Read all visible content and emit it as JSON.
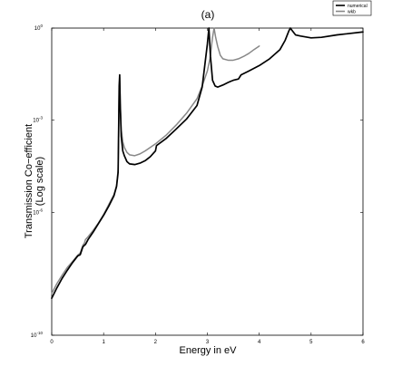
{
  "chart_data": {
    "type": "line",
    "title": "(a)",
    "xlabel": "Energy in eV",
    "ylabel_line1": "Transmission Co−efficient",
    "ylabel_line2": "(Log scale)",
    "xlim": [
      0,
      6
    ],
    "ylim_exponent": [
      -10,
      0
    ],
    "y_scale": "log",
    "grid": false,
    "legend_position": "top-right",
    "x_ticks": [
      0,
      1,
      2,
      3,
      4,
      5,
      6
    ],
    "y_ticks": [
      {
        "value": 1e-10,
        "base": "10",
        "exp": "-10"
      },
      {
        "value": 1e-06,
        "base": "10",
        "exp": "-6"
      },
      {
        "value": 0.001,
        "base": "10",
        "exp": "-3"
      },
      {
        "value": 1,
        "base": "10",
        "exp": "0"
      }
    ],
    "series": [
      {
        "name": "numerical",
        "color": "#000000",
        "x": [
          0.0,
          0.1,
          0.2,
          0.3,
          0.4,
          0.5,
          0.55,
          0.6,
          0.63,
          0.65,
          0.7,
          0.8,
          0.9,
          1.0,
          1.1,
          1.2,
          1.25,
          1.28,
          1.3,
          1.31,
          1.32,
          1.34,
          1.37,
          1.4,
          1.45,
          1.5,
          1.6,
          1.7,
          1.8,
          1.9,
          2.0,
          2.02,
          2.2,
          2.4,
          2.6,
          2.8,
          2.9,
          3.0,
          3.03,
          3.06,
          3.1,
          3.15,
          3.2,
          3.3,
          3.4,
          3.5,
          3.6,
          3.65,
          3.8,
          4.0,
          4.2,
          4.4,
          4.5,
          4.57,
          4.6,
          4.63,
          4.7,
          4.8,
          5.0,
          5.2,
          5.5,
          6.0
        ],
        "y": [
          1.6e-09,
          3.5e-09,
          7.1e-09,
          1.3e-08,
          2.3e-08,
          3.8e-08,
          4.2e-08,
          7.5e-08,
          8.5e-08,
          9e-08,
          1.3e-07,
          2.3e-07,
          4.3e-07,
          8e-07,
          1.6e-06,
          3.5e-06,
          7e-06,
          2e-05,
          0.013,
          0.03,
          0.0035,
          0.0003,
          0.0001,
          7e-05,
          4.5e-05,
          3.8e-05,
          3.6e-05,
          4e-05,
          4.8e-05,
          6.5e-05,
          0.0001,
          0.00015,
          0.00025,
          0.00052,
          0.0011,
          0.003,
          0.012,
          0.3,
          1.0,
          0.12,
          0.02,
          0.013,
          0.012,
          0.014,
          0.017,
          0.02,
          0.022,
          0.03,
          0.04,
          0.06,
          0.1,
          0.2,
          0.4,
          0.8,
          1.0,
          0.85,
          0.6,
          0.55,
          0.48,
          0.5,
          0.6,
          0.75
        ]
      },
      {
        "name": "wkb",
        "color": "#888888",
        "x": [
          0.0,
          0.1,
          0.2,
          0.3,
          0.4,
          0.5,
          0.55,
          0.6,
          0.63,
          0.65,
          0.7,
          0.8,
          0.9,
          1.0,
          1.1,
          1.2,
          1.25,
          1.28,
          1.3,
          1.31,
          1.32,
          1.34,
          1.37,
          1.4,
          1.45,
          1.5,
          1.6,
          1.7,
          1.8,
          2.0,
          2.2,
          2.4,
          2.6,
          2.8,
          2.9,
          3.0,
          3.05,
          3.1,
          3.13,
          3.16,
          3.2,
          3.25,
          3.3,
          3.4,
          3.5,
          3.6,
          3.7,
          3.8,
          3.9,
          4.0
        ],
        "y": [
          2.3e-09,
          4.8e-09,
          9e-09,
          1.6e-08,
          2.5e-08,
          4e-08,
          4.8e-08,
          8.5e-08,
          1e-07,
          1.3e-07,
          1.6e-07,
          2.6e-07,
          4.5e-07,
          8.5e-07,
          1.8e-06,
          3.8e-06,
          7.5e-06,
          2.5e-05,
          0.01,
          0.025,
          0.004,
          0.0005,
          0.0002,
          0.00013,
          9e-05,
          7.5e-05,
          7e-05,
          8e-05,
          0.0001,
          0.00017,
          0.00032,
          0.0007,
          0.0017,
          0.005,
          0.013,
          0.04,
          0.1,
          0.5,
          1.0,
          0.5,
          0.25,
          0.13,
          0.1,
          0.09,
          0.09,
          0.1,
          0.12,
          0.15,
          0.2,
          0.26
        ]
      }
    ]
  }
}
